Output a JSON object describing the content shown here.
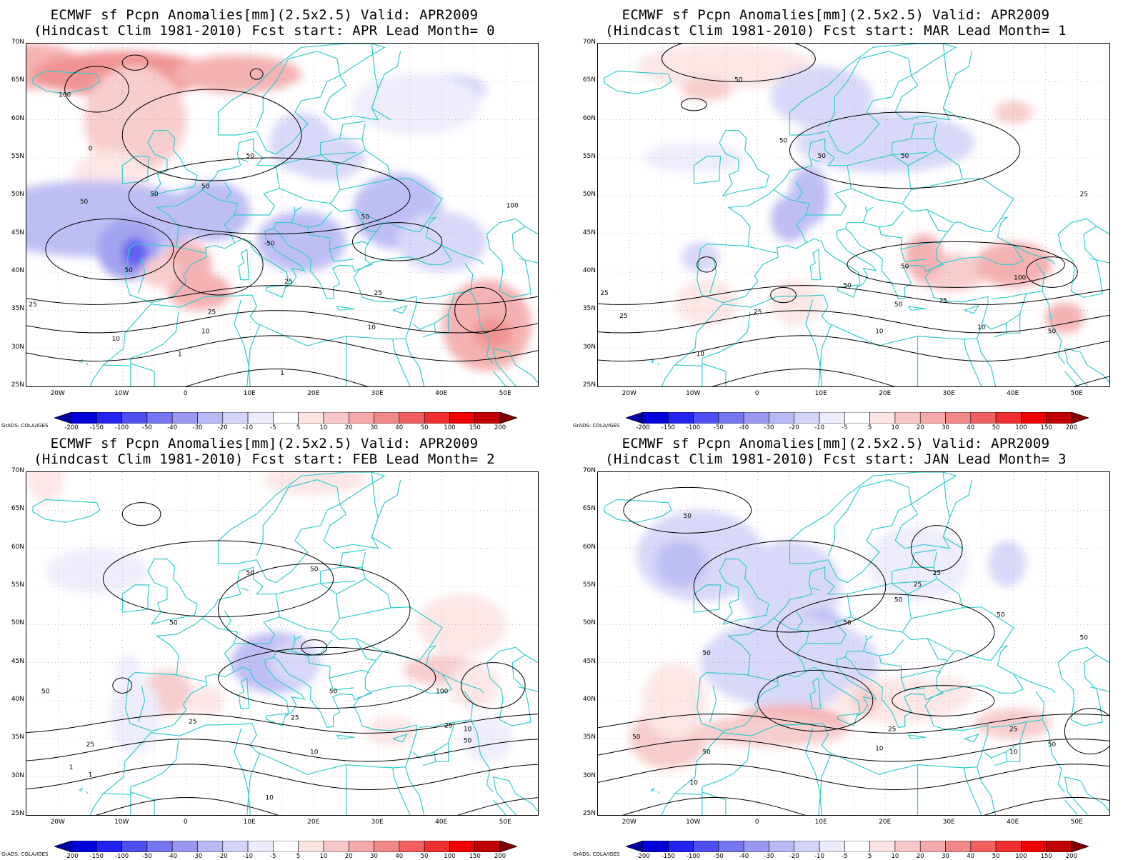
{
  "panels": [
    {
      "title_line1": "ECMWF sf Pcpn Anomalies[mm](2.5x2.5) Valid: APR2009",
      "title_line2": "(Hindcast Clim 1981-2010) Fcst start: APR  Lead Month= 0"
    },
    {
      "title_line1": "ECMWF sf Pcpn Anomalies[mm](2.5x2.5) Valid: APR2009",
      "title_line2": "(Hindcast Clim 1981-2010) Fcst start: MAR  Lead Month= 1"
    },
    {
      "title_line1": "ECMWF sf Pcpn Anomalies[mm](2.5x2.5) Valid: APR2009",
      "title_line2": "(Hindcast Clim 1981-2010) Fcst start: FEB  Lead Month= 2"
    },
    {
      "title_line1": "ECMWF sf Pcpn Anomalies[mm](2.5x2.5) Valid: APR2009",
      "title_line2": "(Hindcast Clim 1981-2010) Fcst start: JAN  Lead Month= 3"
    }
  ],
  "lat_labels": [
    "70N",
    "65N",
    "60N",
    "55N",
    "50N",
    "45N",
    "40N",
    "35N",
    "30N",
    "25N"
  ],
  "lon_labels": [
    "20W",
    "10W",
    "0",
    "10E",
    "20E",
    "30E",
    "40E",
    "50E"
  ],
  "colorbar": {
    "labels": [
      "-200",
      "-150",
      "-100",
      "-50",
      "-40",
      "-30",
      "-20",
      "-10",
      "-5",
      "5",
      "10",
      "20",
      "30",
      "40",
      "50",
      "100",
      "150",
      "200"
    ],
    "colors": [
      "#0000a0",
      "#0000d8",
      "#2323f0",
      "#4f4ff0",
      "#7676f0",
      "#9999f0",
      "#b8b8f4",
      "#d4d4f8",
      "#ececfc",
      "#ffffff",
      "#fce4e4",
      "#f8c8c8",
      "#f4aaaa",
      "#f08888",
      "#f06060",
      "#f03030",
      "#f00000",
      "#c00000",
      "#800000"
    ]
  },
  "credit": "GrADS: COLA/IGES",
  "contour_labels": [
    [
      "100",
      "0",
      "50",
      "50",
      "50",
      "50",
      "50",
      "50",
      "25",
      "25",
      "25",
      "25",
      "10",
      "10",
      "10",
      "1",
      "1",
      "-50",
      "100"
    ],
    [
      "50",
      "50",
      "50",
      "50",
      "25",
      "100",
      "50",
      "50",
      "25",
      "25",
      "10",
      "10",
      "50",
      "25",
      "50",
      "10",
      "25"
    ],
    [
      "50",
      "50",
      "50",
      "50",
      "25",
      "25",
      "10",
      "10",
      "1",
      "25",
      "50",
      "100",
      "50",
      "25",
      "10",
      "1"
    ],
    [
      "50",
      "50",
      "25",
      "50",
      "50",
      "50",
      "50",
      "25",
      "25",
      "10",
      "10",
      "25",
      "50",
      "50",
      "10",
      "50"
    ]
  ],
  "map_colors": {
    "coast": "#33cccc",
    "contour": "#000000",
    "grid": "#999999"
  }
}
